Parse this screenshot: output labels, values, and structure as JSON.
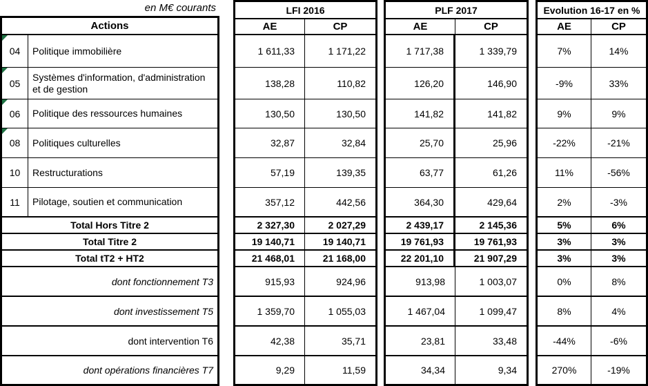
{
  "caption": "en M€ courants",
  "headers": {
    "actions": "Actions",
    "groups": [
      {
        "id": "lfi",
        "label": "LFI 2016"
      },
      {
        "id": "plf",
        "label": "PLF 2017"
      },
      {
        "id": "evo",
        "label": "Evolution 16-17 en %"
      }
    ],
    "ae": "AE",
    "cp": "CP"
  },
  "rows": [
    {
      "type": "action",
      "code": "04",
      "label": "Politique immobilière",
      "flag": true,
      "lfi_ae": "1 611,33",
      "lfi_cp": "1 171,22",
      "plf_ae": "1 717,38",
      "plf_cp": "1 339,79",
      "evo_ae": "7%",
      "evo_cp": "14%"
    },
    {
      "type": "action",
      "code": "05",
      "label": "Systèmes d'information, d'administration et de gestion",
      "flag": true,
      "lfi_ae": "138,28",
      "lfi_cp": "110,82",
      "plf_ae": "126,20",
      "plf_cp": "146,90",
      "evo_ae": "-9%",
      "evo_cp": "33%"
    },
    {
      "type": "action",
      "code": "06",
      "label": "Politique des ressources humaines",
      "flag": true,
      "lfi_ae": "130,50",
      "lfi_cp": "130,50",
      "plf_ae": "141,82",
      "plf_cp": "141,82",
      "evo_ae": "9%",
      "evo_cp": "9%"
    },
    {
      "type": "action",
      "code": "08",
      "label": "Politiques culturelles",
      "flag": true,
      "lfi_ae": "32,87",
      "lfi_cp": "32,84",
      "plf_ae": "25,70",
      "plf_cp": "25,96",
      "evo_ae": "-22%",
      "evo_cp": "-21%"
    },
    {
      "type": "action",
      "code": "10",
      "label": "Restructurations",
      "flag": false,
      "lfi_ae": "57,19",
      "lfi_cp": "139,35",
      "plf_ae": "63,77",
      "plf_cp": "61,26",
      "evo_ae": "11%",
      "evo_cp": "-56%"
    },
    {
      "type": "action",
      "code": "11",
      "label": "Pilotage, soutien et communication",
      "flag": false,
      "lfi_ae": "357,12",
      "lfi_cp": "442,56",
      "plf_ae": "364,30",
      "plf_cp": "429,64",
      "evo_ae": "2%",
      "evo_cp": "-3%"
    },
    {
      "type": "total",
      "label": "Total Hors Titre 2",
      "lfi_ae": "2 327,30",
      "lfi_cp": "2 027,29",
      "plf_ae": "2 439,17",
      "plf_cp": "2 145,36",
      "evo_ae": "5%",
      "evo_cp": "6%"
    },
    {
      "type": "total",
      "label": "Total Titre 2",
      "lfi_ae": "19 140,71",
      "lfi_cp": "19 140,71",
      "plf_ae": "19 761,93",
      "plf_cp": "19 761,93",
      "evo_ae": "3%",
      "evo_cp": "3%"
    },
    {
      "type": "total",
      "label": "Total tT2 + HT2",
      "lfi_ae": "21 468,01",
      "lfi_cp": "21 168,00",
      "plf_ae": "22 201,10",
      "plf_cp": "21 907,29",
      "evo_ae": "3%",
      "evo_cp": "3%"
    },
    {
      "type": "dont",
      "italic": true,
      "label": "dont fonctionnement T3",
      "lfi_ae": "915,93",
      "lfi_cp": "924,96",
      "plf_ae": "913,98",
      "plf_cp": "1 003,07",
      "evo_ae": "0%",
      "evo_cp": "8%"
    },
    {
      "type": "dont",
      "italic": true,
      "label": "dont investissement T5",
      "lfi_ae": "1 359,70",
      "lfi_cp": "1 055,03",
      "plf_ae": "1 467,04",
      "plf_cp": "1 099,47",
      "evo_ae": "8%",
      "evo_cp": "4%"
    },
    {
      "type": "dont",
      "italic": false,
      "label": "dont intervention T6",
      "lfi_ae": "42,38",
      "lfi_cp": "35,71",
      "plf_ae": "23,81",
      "plf_cp": "33,48",
      "evo_ae": "-44%",
      "evo_cp": "-6%"
    },
    {
      "type": "dont",
      "italic": true,
      "label": "dont opérations financières T7",
      "lfi_ae": "9,29",
      "lfi_cp": "11,59",
      "plf_ae": "34,34",
      "plf_cp": "9,34",
      "evo_ae": "270%",
      "evo_cp": "-19%"
    }
  ],
  "colors": {
    "border": "#000000",
    "background": "#ffffff",
    "text": "#000000",
    "flag_green": "#1f7244"
  }
}
